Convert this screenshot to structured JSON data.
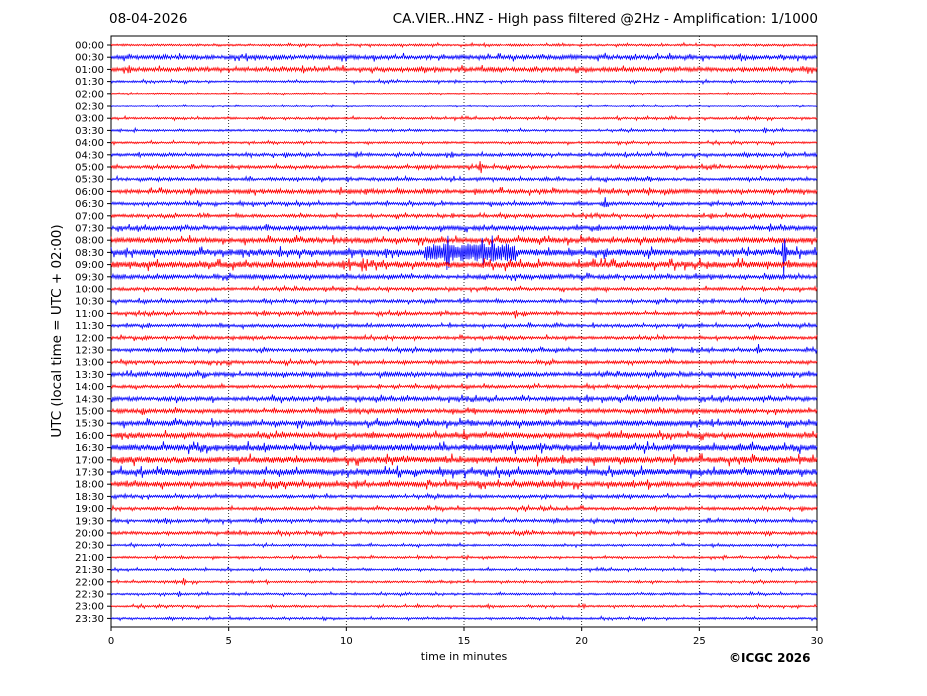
{
  "header": {
    "date": "08-04-2026",
    "title": "CA.VIER..HNZ - High pass filtered @2Hz - Amplification: 1/1000"
  },
  "footer": {
    "copyright": "©ICGC 2026"
  },
  "chart_data": {
    "type": "line",
    "title": "CA.VIER..HNZ - High pass filtered @2Hz - Amplification: 1/1000",
    "xlabel": "time in minutes",
    "ylabel": "UTC (local time = UTC + 02:00)",
    "xlim": [
      0,
      30
    ],
    "x_ticks": [
      "0",
      "5",
      "10",
      "15",
      "20",
      "25",
      "30"
    ],
    "y_ticks": [
      "00:00",
      "00:30",
      "01:00",
      "01:30",
      "02:00",
      "02:30",
      "03:00",
      "03:30",
      "04:00",
      "04:30",
      "05:00",
      "05:30",
      "06:00",
      "06:30",
      "07:00",
      "07:30",
      "08:00",
      "08:30",
      "09:00",
      "09:30",
      "10:00",
      "10:30",
      "11:00",
      "11:30",
      "12:00",
      "12:30",
      "13:00",
      "13:30",
      "14:00",
      "14:30",
      "15:00",
      "15:30",
      "16:00",
      "16:30",
      "17:00",
      "17:30",
      "18:00",
      "18:30",
      "19:00",
      "19:30",
      "20:00",
      "20:30",
      "21:00",
      "21:30",
      "22:00",
      "22:30",
      "23:00",
      "23:30"
    ],
    "grid": "vertical dotted at 5-minute intervals",
    "trace_colors": [
      "#ff0000",
      "#0000ff"
    ],
    "trace_color_order": "alternating: even rows (full hour) red, odd rows (half hour) blue",
    "noise_level": [
      1,
      2,
      2,
      1,
      0.5,
      0.5,
      1,
      1,
      1,
      1.5,
      1.5,
      1.5,
      2,
      1.5,
      1.5,
      2,
      2.5,
      3,
      3,
      2,
      1.5,
      1.5,
      1.5,
      1.5,
      1.5,
      1.5,
      1.5,
      2,
      1.5,
      2,
      2,
      2.5,
      2.5,
      3,
      3,
      3,
      2.5,
      1.5,
      1.5,
      1.5,
      1.5,
      1,
      1,
      1,
      1,
      1,
      1,
      1
    ],
    "events": [
      {
        "row": "01:00",
        "minute": 29.6,
        "amplitude": 5
      },
      {
        "row": "03:30",
        "minute": 27.8,
        "amplitude": 4
      },
      {
        "row": "05:00",
        "minute": 15.7,
        "amplitude": 10
      },
      {
        "row": "05:30",
        "minute": 22.9,
        "amplitude": 4
      },
      {
        "row": "06:00",
        "minute": 15.5,
        "amplitude": 5
      },
      {
        "row": "06:30",
        "minute": 21.0,
        "amplitude": 8
      },
      {
        "row": "07:30",
        "minute": 28.0,
        "amplitude": 6
      },
      {
        "row": "08:30",
        "minute": 7.2,
        "amplitude": 9
      },
      {
        "row": "08:30",
        "minute": 11.7,
        "amplitude": 9
      },
      {
        "row": "08:30",
        "minute": 14.3,
        "amplitude": 30
      },
      {
        "row": "08:30",
        "minute": 15.8,
        "amplitude": 20
      },
      {
        "row": "08:30",
        "minute": 16.2,
        "amplitude": 18
      },
      {
        "row": "08:30",
        "minute": 28.6,
        "amplitude": 28
      },
      {
        "row": "09:00",
        "minute": 10.7,
        "amplitude": 10
      },
      {
        "row": "11:00",
        "minute": 17.2,
        "amplitude": 6
      },
      {
        "row": "12:30",
        "minute": 27.5,
        "amplitude": 7
      },
      {
        "row": "16:00",
        "minute": 15.0,
        "amplitude": 7
      },
      {
        "row": "18:00",
        "minute": 18.2,
        "amplitude": 3
      },
      {
        "row": "22:00",
        "minute": 3.1,
        "amplitude": 5
      },
      {
        "row": "22:30",
        "minute": 2.9,
        "amplitude": 4
      }
    ],
    "bursts": [
      {
        "row": "08:30",
        "from": 13.3,
        "to": 17.2,
        "amplitude": 9
      }
    ]
  }
}
